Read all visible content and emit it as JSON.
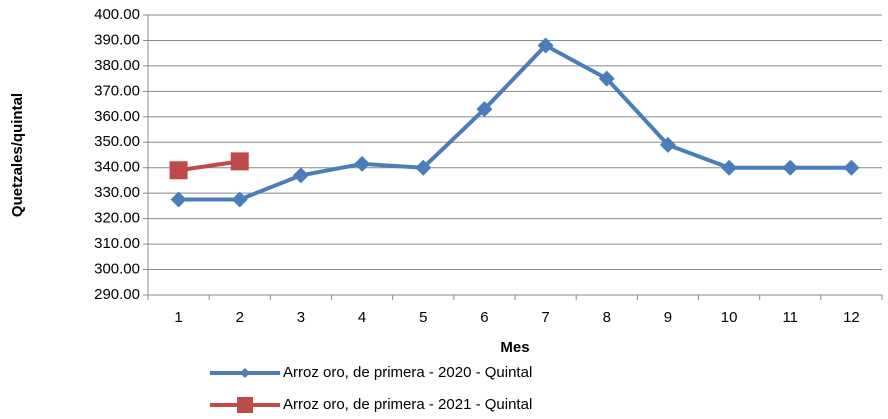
{
  "chart_data": {
    "type": "line",
    "x_label": "Mes",
    "y_label": "Quetzales/quintal",
    "categories": [
      "1",
      "2",
      "3",
      "4",
      "5",
      "6",
      "7",
      "8",
      "9",
      "10",
      "11",
      "12"
    ],
    "series": [
      {
        "name": "Arroz oro, de primera - 2020 - Quintal",
        "color": "#4a7ebb",
        "marker": "diamond",
        "values": [
          327.5,
          327.5,
          337,
          341.5,
          340,
          363,
          388,
          375,
          349,
          340,
          340,
          340
        ]
      },
      {
        "name": "Arroz oro, de primera - 2021 - Quintal",
        "color": "#be4b48",
        "marker": "square",
        "values": [
          339,
          342.5,
          null,
          null,
          null,
          null,
          null,
          null,
          null,
          null,
          null,
          null
        ]
      }
    ],
    "ylim": [
      290,
      400
    ],
    "yticks": [
      {
        "value": 290,
        "label": "290.00"
      },
      {
        "value": 300,
        "label": "300.00"
      },
      {
        "value": 310,
        "label": "310.00"
      },
      {
        "value": 320,
        "label": "320.00"
      },
      {
        "value": 330,
        "label": "330.00"
      },
      {
        "value": 340,
        "label": "340.00"
      },
      {
        "value": 350,
        "label": "350.00"
      },
      {
        "value": 360,
        "label": "360.00"
      },
      {
        "value": 370,
        "label": "370.00"
      },
      {
        "value": 380,
        "label": "380.00"
      },
      {
        "value": 390,
        "label": "390.00"
      },
      {
        "value": 400,
        "label": "400.00"
      }
    ],
    "grid": true,
    "legend": "bottom"
  }
}
